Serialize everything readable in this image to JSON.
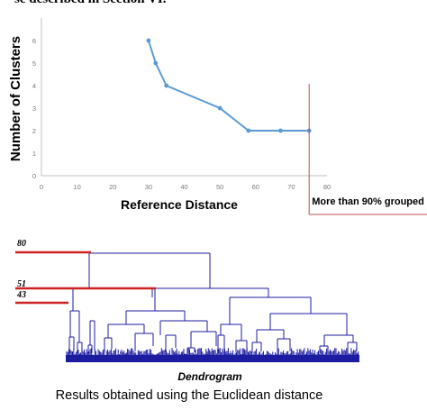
{
  "header_text": "se described in Section VI.",
  "chart_data": {
    "type": "line",
    "x": [
      30,
      32,
      35,
      50,
      58,
      67,
      75
    ],
    "values": [
      6,
      5,
      4,
      3,
      2,
      2,
      2
    ],
    "xlabel": "Reference Distance",
    "ylabel": "Number of Clusters",
    "xlim": [
      0,
      80
    ],
    "ylim": [
      0,
      7
    ],
    "x_ticks": [
      "0",
      "10",
      "20",
      "30",
      "40",
      "50",
      "60",
      "70",
      "80"
    ],
    "y_ticks": [
      "0",
      "1",
      "2",
      "3",
      "4",
      "5",
      "6"
    ],
    "grid": false,
    "line_color": "#5b9bd5",
    "annotation": {
      "text": "More than 90% grouped",
      "x": 75,
      "color": "#c0504d"
    }
  },
  "dendrogram": {
    "title": "Dendrogram",
    "cut_levels": [
      {
        "label": "80"
      },
      {
        "label": "51"
      },
      {
        "label": "43"
      }
    ],
    "cut_color": "#cc2222",
    "tree_color": "#1c1ca0"
  },
  "caption": "Results obtained using the Euclidean distance"
}
